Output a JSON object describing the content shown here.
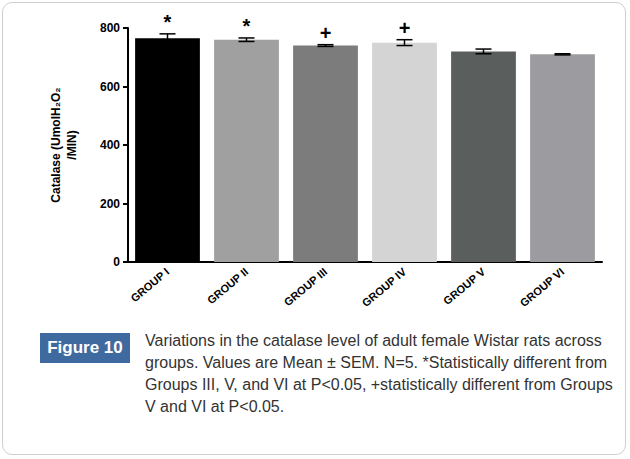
{
  "chart_data": {
    "type": "bar",
    "ylabel": "Catalase (UmolH₂O₂\n/MIN)",
    "categories": [
      "GROUP I",
      "GROUP II",
      "GROUP III",
      "GROUP IV",
      "GROUP V",
      "GROUP VI"
    ],
    "values": [
      765,
      760,
      740,
      750,
      720,
      710
    ],
    "errors": [
      15,
      6,
      3,
      10,
      8,
      2
    ],
    "colors": [
      "#000000",
      "#a0a0a0",
      "#7c7c7c",
      "#d4d4d4",
      "#5a5e5c",
      "#9c9ca0"
    ],
    "annotations": [
      "*",
      "*",
      "+",
      "+",
      null,
      null
    ],
    "ylim": [
      0,
      800
    ],
    "yticks": [
      0,
      200,
      400,
      600,
      800
    ],
    "grid": false
  },
  "figure": {
    "label": "Figure 10",
    "caption": "Variations in the catalase level of adult female Wistar rats across groups. Values are Mean ± SEM. N=5. *Statistically different from Groups III, V, and VI at P<0.05, +statistically different from Groups V and VI at P<0.05."
  }
}
